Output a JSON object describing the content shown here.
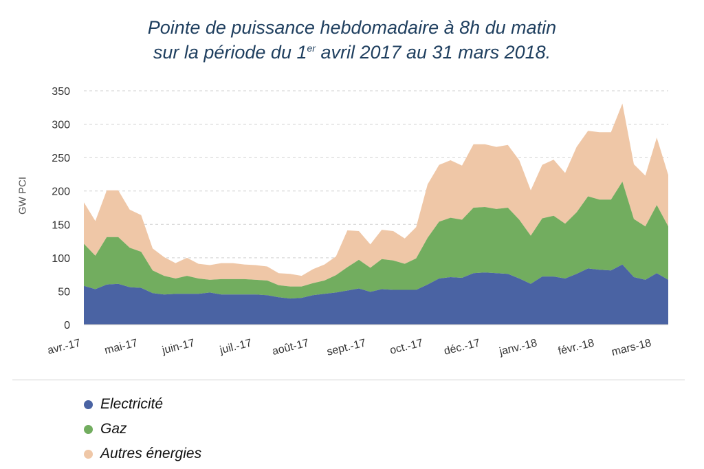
{
  "title": {
    "line1": "Pointe de puissance hebdomadaire à 8h du matin",
    "line2_before": "sur la période du 1",
    "line2_sup": "er",
    "line2_after": " avril 2017 au 31 mars 2018."
  },
  "chart_data": {
    "type": "area",
    "stacked": true,
    "ylabel": "GW PCI",
    "ylim": [
      0,
      350
    ],
    "yticks": [
      0,
      50,
      100,
      150,
      200,
      250,
      300,
      350
    ],
    "grid": "horizontal-dashed",
    "legend_position": "bottom-left",
    "month_labels": [
      "avr.-17",
      "mai-17",
      "juin-17",
      "juil.-17",
      "août-17",
      "sept.-17",
      "oct.-17",
      "déc.-17",
      "janv.-18",
      "févr.-18",
      "mars-18"
    ],
    "series": [
      {
        "name": "Electricité",
        "color": "#4a63a3",
        "values": [
          58,
          53,
          60,
          61,
          56,
          55,
          47,
          45,
          46,
          46,
          46,
          48,
          45,
          45,
          45,
          45,
          44,
          41,
          39,
          40,
          44,
          46,
          48,
          51,
          54,
          49,
          53,
          52,
          52,
          52,
          60,
          69,
          71,
          70,
          77,
          78,
          77,
          76,
          69,
          61,
          72,
          72,
          69,
          76,
          84,
          82,
          81,
          90,
          71,
          67,
          77,
          67
        ]
      },
      {
        "name": "Gaz",
        "color": "#72ad5f",
        "values": [
          63,
          50,
          71,
          70,
          59,
          54,
          34,
          28,
          23,
          27,
          23,
          19,
          23,
          23,
          23,
          22,
          22,
          18,
          18,
          17,
          18,
          20,
          26,
          35,
          43,
          36,
          45,
          44,
          39,
          47,
          70,
          85,
          89,
          87,
          98,
          98,
          96,
          99,
          88,
          72,
          87,
          91,
          82,
          92,
          108,
          105,
          106,
          124,
          87,
          80,
          102,
          80
        ]
      },
      {
        "name": "Autres énergies",
        "color": "#efc7a7",
        "values": [
          62,
          52,
          70,
          70,
          57,
          55,
          33,
          28,
          23,
          27,
          22,
          22,
          24,
          24,
          22,
          22,
          21,
          18,
          19,
          16,
          21,
          24,
          28,
          55,
          43,
          35,
          44,
          44,
          38,
          47,
          80,
          85,
          86,
          81,
          95,
          94,
          93,
          94,
          89,
          68,
          80,
          84,
          76,
          98,
          98,
          101,
          101,
          117,
          82,
          76,
          101,
          77
        ]
      }
    ]
  }
}
